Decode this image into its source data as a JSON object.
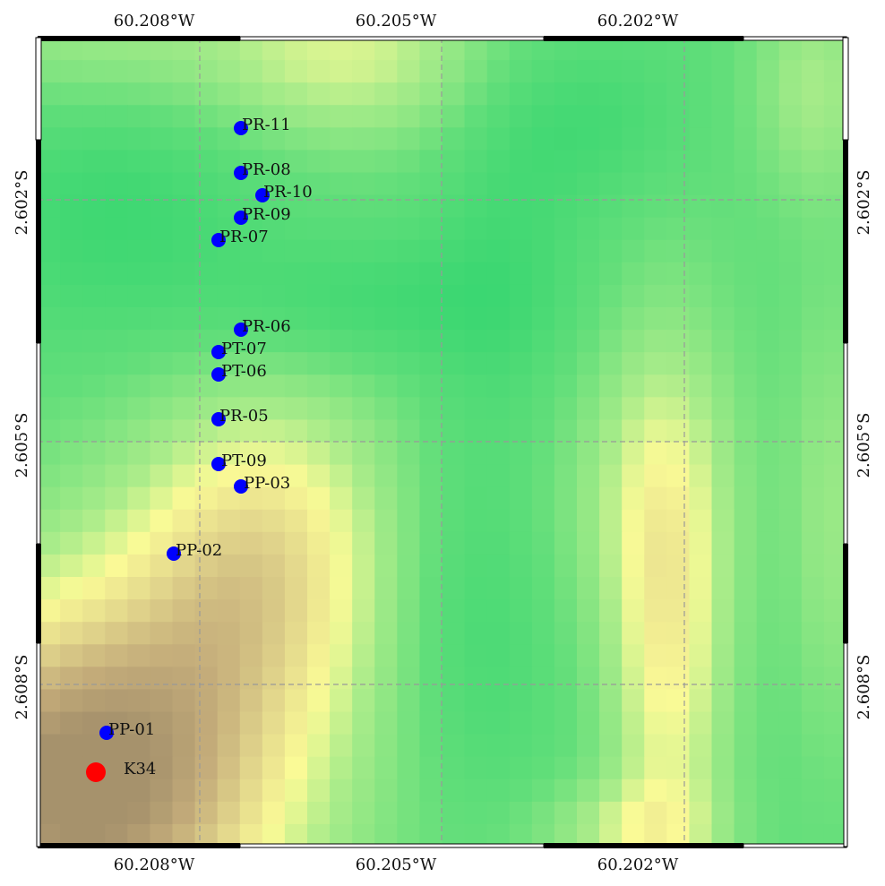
{
  "map": {
    "lon_ticks": [
      "60.208°W",
      "60.205°W",
      "60.202°W"
    ],
    "lat_ticks": [
      "2.602°S",
      "2.605°S",
      "2.608°S"
    ],
    "colors": {
      "marker_blue": "#0000ff",
      "marker_red": "#ff0000",
      "grid": "#999999",
      "dark_green": "#2bd46e",
      "light_green": "#a8ec8a",
      "pale_yellow": "#fbfb98",
      "tan": "#c8b07f",
      "brown": "#a8926c"
    },
    "points": [
      {
        "name": "PR-11",
        "kind": "blue"
      },
      {
        "name": "PR-08",
        "kind": "blue"
      },
      {
        "name": "PR-10",
        "kind": "blue"
      },
      {
        "name": "PR-09",
        "kind": "blue"
      },
      {
        "name": "PR-07",
        "kind": "blue"
      },
      {
        "name": "PR-06",
        "kind": "blue"
      },
      {
        "name": "PT-07",
        "kind": "blue"
      },
      {
        "name": "PT-06",
        "kind": "blue"
      },
      {
        "name": "PR-05",
        "kind": "blue"
      },
      {
        "name": "PT-09",
        "kind": "blue"
      },
      {
        "name": "PP-03",
        "kind": "blue"
      },
      {
        "name": "PP-02",
        "kind": "blue"
      },
      {
        "name": "PP-01",
        "kind": "blue"
      },
      {
        "name": "K34",
        "kind": "red"
      }
    ]
  }
}
